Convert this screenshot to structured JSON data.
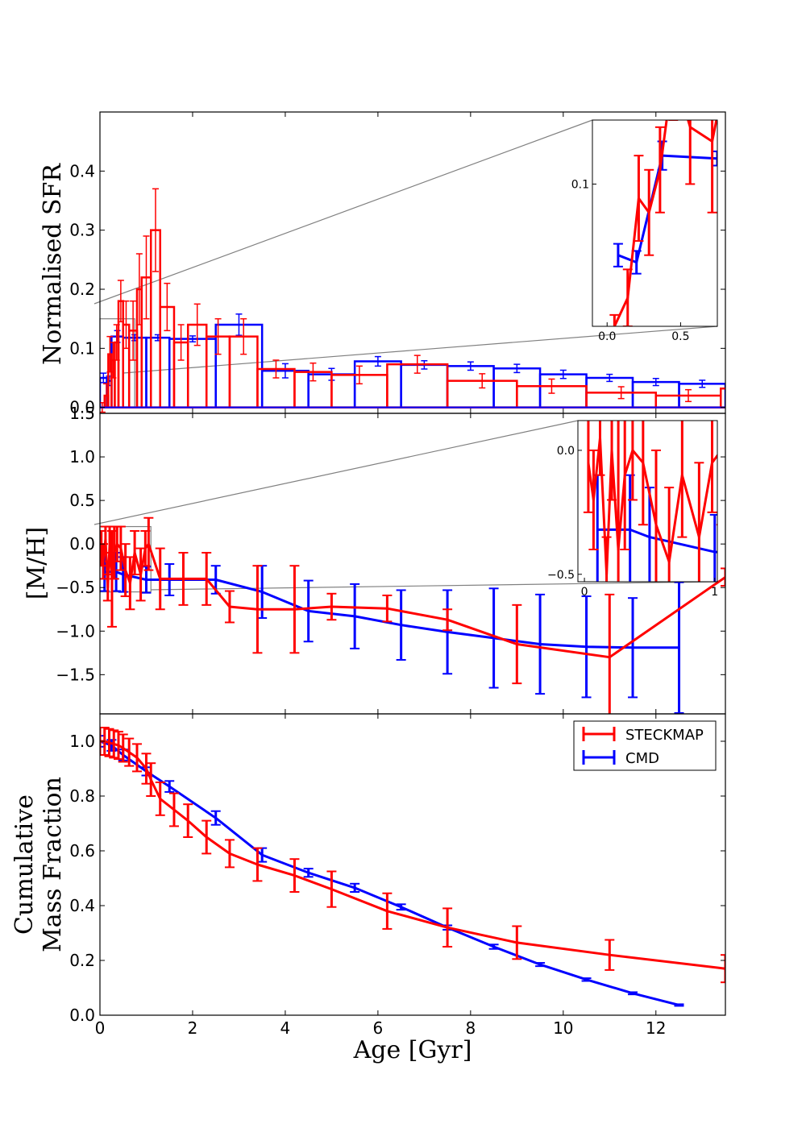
{
  "colors": {
    "steckmap": "#ff0000",
    "cmd": "#0000ff",
    "zoom": "#808080"
  },
  "xaxis": {
    "label": "Age [Gyr]",
    "ticks": [
      0,
      2,
      4,
      6,
      8,
      10,
      12
    ],
    "tick_labels": [
      "0",
      "2",
      "4",
      "6",
      "8",
      "10",
      "12"
    ],
    "xlim": [
      0,
      13.5
    ]
  },
  "legend": {
    "location": "upper right of bottom panel",
    "entries": [
      "STECKMAP",
      "CMD"
    ]
  },
  "chart_data": [
    {
      "panel": "sfr",
      "type": "bar",
      "ylabel": "Normalised SFR",
      "ylim": [
        -0.01,
        0.5
      ],
      "yticks": [
        0.0,
        0.1,
        0.2,
        0.3,
        0.4
      ],
      "ytick_labels": [
        "0.0",
        "0.1",
        "0.2",
        "0.3",
        "0.4"
      ],
      "series": [
        {
          "name": "STECKMAP",
          "bins": [
            {
              "x0": 0.0,
              "x1": 0.1,
              "y": 0.0,
              "err": 0.008
            },
            {
              "x0": 0.1,
              "x1": 0.18,
              "y": 0.02,
              "err": 0.02
            },
            {
              "x0": 0.18,
              "x1": 0.25,
              "y": 0.09,
              "err": 0.03
            },
            {
              "x0": 0.25,
              "x1": 0.32,
              "y": 0.08,
              "err": 0.03
            },
            {
              "x0": 0.32,
              "x1": 0.4,
              "y": 0.11,
              "err": 0.03
            },
            {
              "x0": 0.4,
              "x1": 0.5,
              "y": 0.18,
              "err": 0.035
            },
            {
              "x0": 0.5,
              "x1": 0.63,
              "y": 0.14,
              "err": 0.04
            },
            {
              "x0": 0.63,
              "x1": 0.8,
              "y": 0.13,
              "err": 0.05
            },
            {
              "x0": 0.8,
              "x1": 0.9,
              "y": 0.2,
              "err": 0.06
            },
            {
              "x0": 0.9,
              "x1": 1.1,
              "y": 0.22,
              "err": 0.07
            },
            {
              "x0": 1.1,
              "x1": 1.3,
              "y": 0.3,
              "err": 0.07
            },
            {
              "x0": 1.3,
              "x1": 1.6,
              "y": 0.17,
              "err": 0.04
            },
            {
              "x0": 1.6,
              "x1": 1.9,
              "y": 0.11,
              "err": 0.03
            },
            {
              "x0": 1.9,
              "x1": 2.3,
              "y": 0.14,
              "err": 0.035
            },
            {
              "x0": 2.3,
              "x1": 2.8,
              "y": 0.12,
              "err": 0.03
            },
            {
              "x0": 2.8,
              "x1": 3.4,
              "y": 0.12,
              "err": 0.03
            },
            {
              "x0": 3.4,
              "x1": 4.2,
              "y": 0.065,
              "err": 0.015
            },
            {
              "x0": 4.2,
              "x1": 5.0,
              "y": 0.06,
              "err": 0.015
            },
            {
              "x0": 5.0,
              "x1": 6.2,
              "y": 0.055,
              "err": 0.015
            },
            {
              "x0": 6.2,
              "x1": 7.5,
              "y": 0.073,
              "err": 0.015
            },
            {
              "x0": 7.5,
              "x1": 9.0,
              "y": 0.045,
              "err": 0.012
            },
            {
              "x0": 9.0,
              "x1": 10.5,
              "y": 0.036,
              "err": 0.012
            },
            {
              "x0": 10.5,
              "x1": 12.0,
              "y": 0.025,
              "err": 0.01
            },
            {
              "x0": 12.0,
              "x1": 13.4,
              "y": 0.02,
              "err": 0.01
            },
            {
              "x0": 13.4,
              "x1": 14.0,
              "y": 0.032,
              "err": 0.01
            }
          ]
        },
        {
          "name": "CMD",
          "bins": [
            {
              "x0": 0.0,
              "x1": 0.15,
              "y": 0.05,
              "err": 0.008
            },
            {
              "x0": 0.15,
              "x1": 0.25,
              "y": 0.045,
              "err": 0.008
            },
            {
              "x0": 0.25,
              "x1": 0.5,
              "y": 0.12,
              "err": 0.01
            },
            {
              "x0": 0.5,
              "x1": 1.0,
              "y": 0.118,
              "err": 0.005
            },
            {
              "x0": 1.0,
              "x1": 1.5,
              "y": 0.118,
              "err": 0.005
            },
            {
              "x0": 1.5,
              "x1": 2.5,
              "y": 0.116,
              "err": 0.005
            },
            {
              "x0": 2.5,
              "x1": 3.5,
              "y": 0.14,
              "err": 0.018
            },
            {
              "x0": 3.5,
              "x1": 4.5,
              "y": 0.062,
              "err": 0.012
            },
            {
              "x0": 4.5,
              "x1": 5.5,
              "y": 0.056,
              "err": 0.01
            },
            {
              "x0": 5.5,
              "x1": 6.5,
              "y": 0.078,
              "err": 0.008
            },
            {
              "x0": 6.5,
              "x1": 7.5,
              "y": 0.072,
              "err": 0.007
            },
            {
              "x0": 7.5,
              "x1": 8.5,
              "y": 0.07,
              "err": 0.007
            },
            {
              "x0": 8.5,
              "x1": 9.5,
              "y": 0.066,
              "err": 0.007
            },
            {
              "x0": 9.5,
              "x1": 10.5,
              "y": 0.056,
              "err": 0.007
            },
            {
              "x0": 10.5,
              "x1": 11.5,
              "y": 0.05,
              "err": 0.006
            },
            {
              "x0": 11.5,
              "x1": 12.5,
              "y": 0.043,
              "err": 0.006
            },
            {
              "x0": 12.5,
              "x1": 13.5,
              "y": 0.04,
              "err": 0.006
            }
          ]
        }
      ],
      "inset": {
        "xlim": [
          -0.1,
          0.75
        ],
        "ylim": [
          0.0,
          0.145
        ],
        "xticks": [
          0.0,
          0.5
        ],
        "xtick_labels": [
          "0.0",
          "0.5"
        ],
        "yticks": [
          0.1
        ],
        "ytick_labels": [
          "0.1"
        ],
        "zoom_region": {
          "x": [
            0.0,
            0.75
          ],
          "y": [
            0.0,
            0.15
          ]
        }
      }
    },
    {
      "panel": "metallicity",
      "type": "line",
      "ylabel": "[M/H]",
      "ylim": [
        -1.95,
        1.5
      ],
      "yticks": [
        -1.5,
        -1.0,
        -0.5,
        0.0,
        0.5,
        1.0,
        1.5
      ],
      "ytick_labels": [
        "−1.5",
        "−1.0",
        "−0.5",
        "0.0",
        "0.5",
        "1.0",
        "1.5"
      ],
      "series": [
        {
          "name": "STECKMAP",
          "points": [
            {
              "x": 0.03,
              "y": -0.05,
              "err": 0.2
            },
            {
              "x": 0.07,
              "y": -0.2,
              "err": 0.2
            },
            {
              "x": 0.12,
              "y": 0.05,
              "err": 0.15
            },
            {
              "x": 0.17,
              "y": -0.5,
              "err": 0.15
            },
            {
              "x": 0.21,
              "y": 0.0,
              "err": 0.2
            },
            {
              "x": 0.26,
              "y": -0.4,
              "err": 0.55
            },
            {
              "x": 0.31,
              "y": -0.1,
              "err": 0.3
            },
            {
              "x": 0.37,
              "y": 0.0,
              "err": 0.2
            },
            {
              "x": 0.45,
              "y": -0.05,
              "err": 0.25
            },
            {
              "x": 0.55,
              "y": -0.3,
              "err": 0.3
            },
            {
              "x": 0.65,
              "y": -0.45,
              "err": 0.3
            },
            {
              "x": 0.75,
              "y": -0.1,
              "err": 0.25
            },
            {
              "x": 0.88,
              "y": -0.35,
              "err": 0.3
            },
            {
              "x": 0.98,
              "y": -0.05,
              "err": 0.2
            },
            {
              "x": 1.05,
              "y": 0.0,
              "err": 0.3
            },
            {
              "x": 1.3,
              "y": -0.4,
              "err": 0.35
            },
            {
              "x": 1.8,
              "y": -0.4,
              "err": 0.3
            },
            {
              "x": 2.3,
              "y": -0.4,
              "err": 0.3
            },
            {
              "x": 2.8,
              "y": -0.72,
              "err": 0.18
            },
            {
              "x": 3.4,
              "y": -0.75,
              "err": 0.5
            },
            {
              "x": 4.2,
              "y": -0.75,
              "err": 0.5
            },
            {
              "x": 5.0,
              "y": -0.72,
              "err": 0.15
            },
            {
              "x": 6.2,
              "y": -0.74,
              "err": 0.15
            },
            {
              "x": 7.5,
              "y": -0.87,
              "err": 0.12
            },
            {
              "x": 9.0,
              "y": -1.15,
              "err": 0.45
            },
            {
              "x": 11.0,
              "y": -1.3,
              "err": 0.72
            },
            {
              "x": 13.5,
              "y": -0.38,
              "err": 0.1
            }
          ]
        },
        {
          "name": "CMD",
          "points": [
            {
              "x": 0.1,
              "y": -0.32,
              "err": 0.22
            },
            {
              "x": 0.35,
              "y": -0.32,
              "err": 0.22
            },
            {
              "x": 0.5,
              "y": -0.35,
              "err": 0.2
            },
            {
              "x": 1.0,
              "y": -0.41,
              "err": 0.15
            },
            {
              "x": 1.5,
              "y": -0.41,
              "err": 0.18
            },
            {
              "x": 2.5,
              "y": -0.41,
              "err": 0.16
            },
            {
              "x": 3.5,
              "y": -0.55,
              "err": 0.3
            },
            {
              "x": 4.5,
              "y": -0.77,
              "err": 0.35
            },
            {
              "x": 5.5,
              "y": -0.83,
              "err": 0.37
            },
            {
              "x": 6.5,
              "y": -0.93,
              "err": 0.4
            },
            {
              "x": 7.5,
              "y": -1.01,
              "err": 0.48
            },
            {
              "x": 8.5,
              "y": -1.08,
              "err": 0.57
            },
            {
              "x": 9.5,
              "y": -1.15,
              "err": 0.57
            },
            {
              "x": 10.5,
              "y": -1.18,
              "err": 0.58
            },
            {
              "x": 11.5,
              "y": -1.19,
              "err": 0.57
            },
            {
              "x": 12.5,
              "y": -1.19,
              "err": 0.75
            }
          ]
        }
      ],
      "inset": {
        "xlim": [
          -0.05,
          1.02
        ],
        "ylim": [
          -0.53,
          0.12
        ],
        "xticks": [
          0,
          1
        ],
        "xtick_labels": [
          "0",
          "1"
        ],
        "yticks": [
          0.0,
          -0.5
        ],
        "ytick_labels": [
          "0.0",
          "−0.5"
        ],
        "zoom_region": {
          "x": [
            0.0,
            1.1
          ],
          "y": [
            -0.55,
            0.2
          ]
        }
      }
    },
    {
      "panel": "cumulative",
      "type": "line",
      "ylabel": [
        "Cumulative",
        "Mass Fraction"
      ],
      "ylim": [
        0.0,
        1.1
      ],
      "yticks": [
        0.0,
        0.2,
        0.4,
        0.6,
        0.8,
        1.0
      ],
      "ytick_labels": [
        "0.0",
        "0.2",
        "0.4",
        "0.6",
        "0.8",
        "1.0"
      ],
      "series": [
        {
          "name": "STECKMAP",
          "points": [
            {
              "x": 0.0,
              "y": 1.0,
              "err": 0.05
            },
            {
              "x": 0.1,
              "y": 1.0,
              "err": 0.05
            },
            {
              "x": 0.2,
              "y": 0.995,
              "err": 0.05
            },
            {
              "x": 0.3,
              "y": 0.99,
              "err": 0.05
            },
            {
              "x": 0.4,
              "y": 0.985,
              "err": 0.05
            },
            {
              "x": 0.5,
              "y": 0.975,
              "err": 0.05
            },
            {
              "x": 0.63,
              "y": 0.96,
              "err": 0.05
            },
            {
              "x": 0.8,
              "y": 0.94,
              "err": 0.05
            },
            {
              "x": 1.0,
              "y": 0.9,
              "err": 0.055
            },
            {
              "x": 1.1,
              "y": 0.86,
              "err": 0.06
            },
            {
              "x": 1.3,
              "y": 0.79,
              "err": 0.06
            },
            {
              "x": 1.6,
              "y": 0.75,
              "err": 0.06
            },
            {
              "x": 1.9,
              "y": 0.71,
              "err": 0.06
            },
            {
              "x": 2.3,
              "y": 0.65,
              "err": 0.06
            },
            {
              "x": 2.8,
              "y": 0.59,
              "err": 0.05
            },
            {
              "x": 3.4,
              "y": 0.55,
              "err": 0.06
            },
            {
              "x": 4.2,
              "y": 0.51,
              "err": 0.06
            },
            {
              "x": 5.0,
              "y": 0.46,
              "err": 0.065
            },
            {
              "x": 6.2,
              "y": 0.38,
              "err": 0.065
            },
            {
              "x": 7.5,
              "y": 0.32,
              "err": 0.07
            },
            {
              "x": 9.0,
              "y": 0.265,
              "err": 0.06
            },
            {
              "x": 11.0,
              "y": 0.22,
              "err": 0.055
            },
            {
              "x": 13.5,
              "y": 0.17,
              "err": 0.05
            }
          ]
        },
        {
          "name": "CMD",
          "points": [
            {
              "x": 0.0,
              "y": 1.0,
              "err": 0.02
            },
            {
              "x": 0.25,
              "y": 0.985,
              "err": 0.02
            },
            {
              "x": 0.5,
              "y": 0.95,
              "err": 0.02
            },
            {
              "x": 1.0,
              "y": 0.89,
              "err": 0.015
            },
            {
              "x": 1.5,
              "y": 0.835,
              "err": 0.02
            },
            {
              "x": 2.5,
              "y": 0.72,
              "err": 0.025
            },
            {
              "x": 3.5,
              "y": 0.585,
              "err": 0.025
            },
            {
              "x": 4.5,
              "y": 0.52,
              "err": 0.015
            },
            {
              "x": 5.5,
              "y": 0.465,
              "err": 0.015
            },
            {
              "x": 6.5,
              "y": 0.395,
              "err": 0.01
            },
            {
              "x": 7.5,
              "y": 0.32,
              "err": 0.008
            },
            {
              "x": 8.5,
              "y": 0.25,
              "err": 0.008
            },
            {
              "x": 9.5,
              "y": 0.185,
              "err": 0.006
            },
            {
              "x": 10.5,
              "y": 0.13,
              "err": 0.005
            },
            {
              "x": 11.5,
              "y": 0.08,
              "err": 0.004
            },
            {
              "x": 12.5,
              "y": 0.037,
              "err": 0.003
            }
          ]
        }
      ]
    }
  ]
}
